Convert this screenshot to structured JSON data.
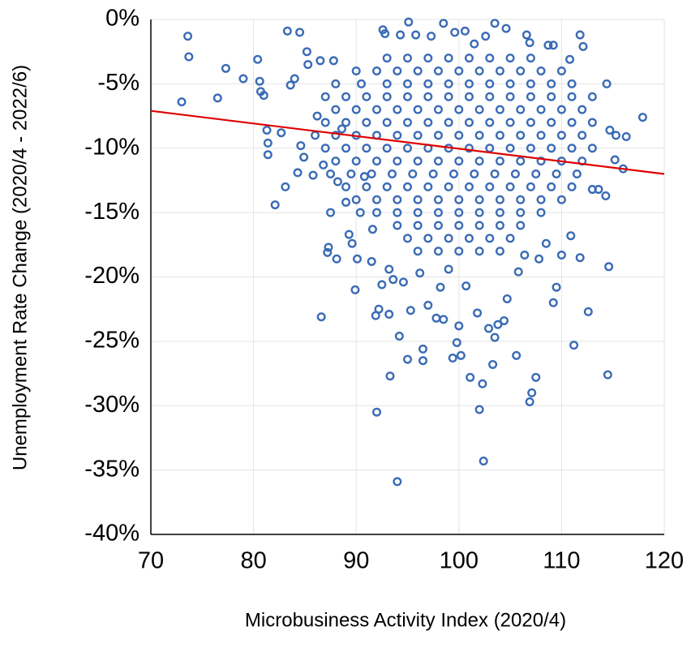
{
  "chart_data": {
    "type": "scatter",
    "x_label": "Microbusiness Activity Index (2020/4)",
    "y_label": "Unemployment Rate Change (2020/4 - 2022/6)",
    "xlim": [
      70,
      120
    ],
    "xticks": [
      70,
      80,
      90,
      100,
      110,
      120
    ],
    "ylim": [
      -40,
      0
    ],
    "yticks": [
      {
        "value": -40,
        "label": "-40%"
      },
      {
        "value": -35,
        "label": "-35%"
      },
      {
        "value": -30,
        "label": "-30%"
      },
      {
        "value": -25,
        "label": "-25%"
      },
      {
        "value": -20,
        "label": "-20%"
      },
      {
        "value": -15,
        "label": "-15%"
      },
      {
        "value": -10,
        "label": "-10%"
      },
      {
        "value": -5,
        "label": "-5%"
      },
      {
        "value": 0,
        "label": "0%"
      }
    ],
    "grid": true,
    "color": "#3a6bb5",
    "trendline": {
      "x": [
        70,
        120
      ],
      "y": [
        -7.1,
        -12.0
      ],
      "color": "#e00000"
    },
    "x": [
      73.0,
      73.6,
      73.7,
      76.5,
      77.3,
      79,
      80.4,
      80.6,
      80.7,
      81,
      81.3,
      81.4,
      81.4,
      82.1,
      82.7,
      83.1,
      83.3,
      83.6,
      84,
      84.3,
      84.5,
      84.6,
      84.9,
      85.2,
      85.3,
      85.8,
      86.2,
      86.5,
      86.6,
      86.8,
      87.2,
      87.3,
      87.5,
      87.8,
      88.1,
      88.2,
      88.6,
      89,
      89.3,
      89.6,
      89.9,
      90.1,
      90.4,
      90.8,
      91.5,
      91.6,
      91.9,
      92,
      92.2,
      92.5,
      92.6,
      92.8,
      93.2,
      93.2,
      93.3,
      93.6,
      94,
      94.2,
      94.3,
      94.6,
      95,
      95.3,
      95.1,
      96.2,
      96.5,
      96.5,
      97,
      97.8,
      98.2,
      98.5,
      99,
      99.4,
      99.8,
      100,
      100.2,
      100.7,
      101.1,
      101.8,
      102,
      102.3,
      102.4,
      102.9,
      103.3,
      103.5,
      103.8,
      104.4,
      104.7,
      105.6,
      105.8,
      106.4,
      106.9,
      107.1,
      107.5,
      107.8,
      108.5,
      109.2,
      109.5,
      110,
      110.9,
      111.2,
      111.8,
      112.6,
      113,
      113.6,
      114.3,
      114.5,
      114.6,
      114.4,
      114.7,
      115.2,
      115.3,
      116,
      116.3,
      117.9,
      111.8,
      112.1,
      110.8,
      108.7,
      109.2,
      106.6,
      106.9,
      104.6,
      103.5,
      102.6,
      98.5,
      99.6,
      100.6,
      101.5,
      95.8,
      97.3,
      93,
      95,
      97,
      99,
      101,
      103,
      105,
      107,
      90,
      92,
      94,
      96,
      98,
      100,
      102,
      104,
      106,
      108,
      110,
      88,
      90.5,
      93,
      95,
      97,
      99,
      101,
      103,
      105,
      107,
      109,
      111,
      87,
      89,
      91,
      93,
      95,
      97,
      99,
      101,
      103,
      105,
      107,
      109,
      111,
      113,
      88,
      90,
      92,
      94,
      96,
      98,
      100,
      102,
      104,
      106,
      108,
      110,
      112,
      87,
      89,
      91,
      93,
      95,
      97,
      99,
      101,
      103,
      105,
      107,
      109,
      111,
      113,
      86,
      88,
      90,
      92,
      94,
      96,
      98,
      100,
      102,
      104,
      106,
      108,
      110,
      112,
      87,
      89,
      91,
      93,
      95,
      97,
      99,
      101,
      103,
      105,
      107,
      109,
      111,
      113,
      88,
      90,
      92,
      94,
      96,
      98,
      100,
      102,
      104,
      106,
      108,
      110,
      112,
      87.5,
      89.5,
      91.5,
      93.5,
      95.5,
      97.5,
      99.5,
      101.5,
      103.5,
      105.5,
      107.5,
      109.5,
      111.5,
      89,
      91,
      93,
      95,
      97,
      99,
      101,
      103,
      105,
      107,
      109,
      111,
      90,
      92,
      94,
      96,
      98,
      100,
      102,
      104,
      106,
      108,
      110,
      92,
      94,
      96,
      98,
      100,
      102,
      104,
      106,
      108,
      94,
      96,
      98,
      100,
      102,
      104,
      106,
      95,
      97,
      99,
      101,
      103,
      105,
      96,
      98,
      100,
      102,
      104
    ],
    "values": [
      -6.4,
      -1.3,
      -2.9,
      -6.1,
      -3.8,
      -4.6,
      -3.1,
      -4.8,
      -5.6,
      -5.9,
      -8.6,
      -9.6,
      -10.5,
      -14.4,
      -8.8,
      -13,
      -0.9,
      -5.1,
      -4.6,
      -11.9,
      -1,
      -9.8,
      -10.7,
      -2.5,
      -3.5,
      -12.1,
      -7.5,
      -3.2,
      -23.1,
      -11.3,
      -18.1,
      -17.7,
      -15,
      -3.2,
      -18.6,
      -12.6,
      -8.5,
      -14.2,
      -16.7,
      -17.4,
      -21,
      -18.6,
      -15,
      -12.2,
      -18.8,
      -16.3,
      -23,
      -30.5,
      -22.5,
      -20.6,
      -0.8,
      -1.1,
      -19.4,
      -22.9,
      -27.7,
      -20.2,
      -35.9,
      -24.6,
      -1.2,
      -20.4,
      -26.4,
      -22.6,
      -0.2,
      -19.7,
      -26.5,
      -25.6,
      -22.2,
      -23.2,
      -20.8,
      -23.3,
      -19.4,
      -26.3,
      -25.1,
      -23.8,
      -26.1,
      -20.7,
      -27.8,
      -22.8,
      -30.3,
      -28.3,
      -34.3,
      -24,
      -26.8,
      -24.7,
      -23.7,
      -23.4,
      -21.7,
      -26.1,
      -19.6,
      -18.3,
      -29.7,
      -29,
      -27.8,
      -18.6,
      -17.4,
      -22,
      -20.8,
      -18.3,
      -16.8,
      -25.3,
      -18.5,
      -22.7,
      -13.2,
      -13.2,
      -13.7,
      -27.6,
      -19.2,
      -5,
      -8.6,
      -10.9,
      -9,
      -11.6,
      -9.1,
      -7.6,
      -1.2,
      -2.1,
      -3.1,
      -2,
      -2,
      -1.2,
      -1.8,
      -0.7,
      -0.3,
      -1.3,
      -0.3,
      -1,
      -0.9,
      -1.9,
      -1.2,
      -1.3,
      -3,
      -3,
      -3,
      -3,
      -3,
      -3,
      -3,
      -3,
      -4,
      -4,
      -4,
      -4,
      -4,
      -4,
      -4,
      -4,
      -4,
      -4,
      -4,
      -5,
      -5,
      -5,
      -5,
      -5,
      -5,
      -5,
      -5,
      -5,
      -5,
      -5,
      -5,
      -6,
      -6,
      -6,
      -6,
      -6,
      -6,
      -6,
      -6,
      -6,
      -6,
      -6,
      -6,
      -6,
      -6,
      -7,
      -7,
      -7,
      -7,
      -7,
      -7,
      -7,
      -7,
      -7,
      -7,
      -7,
      -7,
      -7,
      -8,
      -8,
      -8,
      -8,
      -8,
      -8,
      -8,
      -8,
      -8,
      -8,
      -8,
      -8,
      -8,
      -8,
      -9,
      -9,
      -9,
      -9,
      -9,
      -9,
      -9,
      -9,
      -9,
      -9,
      -9,
      -9,
      -9,
      -9,
      -10,
      -10,
      -10,
      -10,
      -10,
      -10,
      -10,
      -10,
      -10,
      -10,
      -10,
      -10,
      -10,
      -10,
      -11,
      -11,
      -11,
      -11,
      -11,
      -11,
      -11,
      -11,
      -11,
      -11,
      -11,
      -11,
      -11,
      -12,
      -12,
      -12,
      -12,
      -12,
      -12,
      -12,
      -12,
      -12,
      -12,
      -12,
      -12,
      -12,
      -13,
      -13,
      -13,
      -13,
      -13,
      -13,
      -13,
      -13,
      -13,
      -13,
      -13,
      -13,
      -14,
      -14,
      -14,
      -14,
      -14,
      -14,
      -14,
      -14,
      -14,
      -14,
      -14,
      -15,
      -15,
      -15,
      -15,
      -15,
      -15,
      -15,
      -15,
      -15,
      -16,
      -16,
      -16,
      -16,
      -16,
      -16,
      -16,
      -17,
      -17,
      -17,
      -17,
      -17,
      -17,
      -18,
      -18,
      -18,
      -18,
      -18
    ]
  }
}
